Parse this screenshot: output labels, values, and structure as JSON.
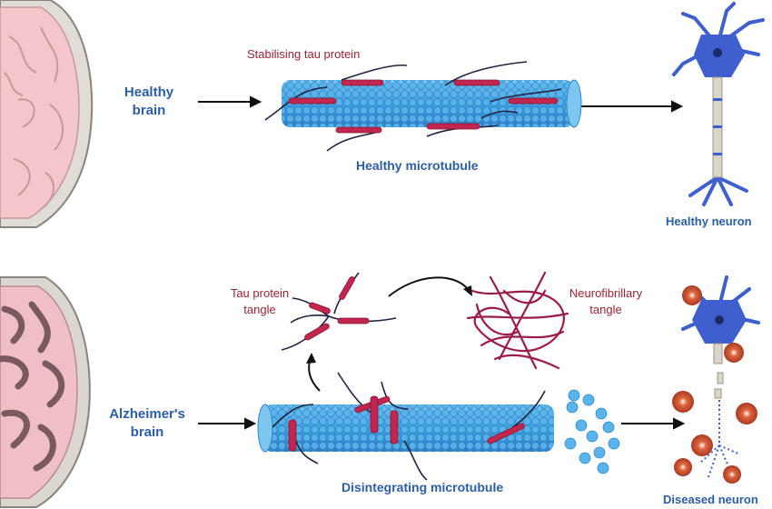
{
  "healthy": {
    "brain_label": "Healthy\nbrain",
    "protein_label": "Stabilising tau protein",
    "microtubule_label": "Healthy microtubule",
    "neuron_label": "Healthy neuron"
  },
  "alzheimers": {
    "brain_label": "Alzheimer's\nbrain",
    "tangle_label": "Tau protein\ntangle",
    "nft_label": "Neurofibrillary\ntangle",
    "microtubule_label": "Disintegrating microtubule",
    "neuron_label": "Diseased neuron"
  },
  "colors": {
    "label_blue": "#2c5ea8",
    "label_red": "#9b2335",
    "microtubule": "#4fa8e0",
    "tau": "#c0264f",
    "neuron": "#3f5fcf",
    "plaque": "#c8532f"
  }
}
